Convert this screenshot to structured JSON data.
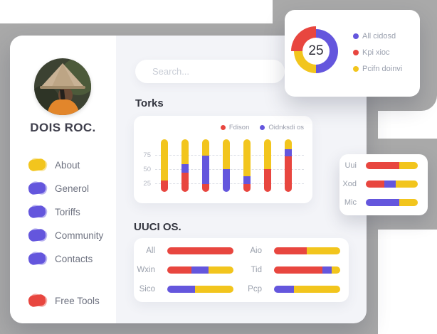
{
  "colors": {
    "red": "#e8463f",
    "purple": "#6456dd",
    "yellow": "#f2c51d",
    "gray_bg": "#a9a9a9",
    "content_bg": "#f3f4f8",
    "text_dark": "#33353f",
    "text_gray": "#6e7280",
    "text_light": "#9aa0ac"
  },
  "profile": {
    "name": "DOIS ROC."
  },
  "sidebar": {
    "items": [
      {
        "label": "About",
        "color": "yellow"
      },
      {
        "label": "Generol",
        "color": "purple"
      },
      {
        "label": "Toriffs",
        "color": "purple"
      },
      {
        "label": "Community",
        "color": "purple"
      },
      {
        "label": "Contacts",
        "color": "purple"
      }
    ],
    "footer_item": {
      "label": "Free Tools",
      "color": "red"
    }
  },
  "search": {
    "placeholder": "Search..."
  },
  "sections": {
    "torks": "Torks",
    "uuci": "UUCI OS."
  },
  "chart_data": [
    {
      "id": "kpi-donut",
      "type": "pie",
      "center_label": "25",
      "legend_position": "right",
      "legend": [
        {
          "label": "All cidosd",
          "color": "purple"
        },
        {
          "label": "Kpi xioc",
          "color": "red"
        },
        {
          "label": "Pcifn doinvi",
          "color": "yellow"
        }
      ],
      "slices": [
        {
          "label": "All cidosd",
          "color": "purple",
          "value": 50
        },
        {
          "label": "Pcifn doinvi",
          "color": "yellow",
          "value": 25
        },
        {
          "label": "Kpi xioc",
          "color": "red",
          "value": 25,
          "emphasized": true
        }
      ]
    },
    {
      "id": "torks",
      "type": "bar",
      "stacked": true,
      "title": "Torks",
      "yticks": [
        "75",
        "50",
        "25"
      ],
      "grid": "dashed",
      "legend": [
        {
          "label": "Fdison",
          "color": "red"
        },
        {
          "label": "Oidnksdi os",
          "color": "purple"
        }
      ],
      "bars": [
        {
          "segments": [
            {
              "color": "yellow",
              "pct": 78
            },
            {
              "color": "red",
              "pct": 22
            }
          ]
        },
        {
          "segments": [
            {
              "color": "yellow",
              "pct": 47
            },
            {
              "color": "purple",
              "pct": 16
            },
            {
              "color": "red",
              "pct": 37
            }
          ]
        },
        {
          "segments": [
            {
              "color": "yellow",
              "pct": 31
            },
            {
              "color": "purple",
              "pct": 54
            },
            {
              "color": "red",
              "pct": 15
            }
          ]
        },
        {
          "segments": [
            {
              "color": "yellow",
              "pct": 57
            },
            {
              "color": "purple",
              "pct": 43
            }
          ]
        },
        {
          "segments": [
            {
              "color": "yellow",
              "pct": 70
            },
            {
              "color": "purple",
              "pct": 15
            },
            {
              "color": "red",
              "pct": 15
            }
          ]
        },
        {
          "segments": [
            {
              "color": "yellow",
              "pct": 57
            },
            {
              "color": "red",
              "pct": 43
            }
          ]
        },
        {
          "segments": [
            {
              "color": "yellow",
              "pct": 19
            },
            {
              "color": "purple",
              "pct": 13
            },
            {
              "color": "red",
              "pct": 68
            }
          ]
        }
      ]
    },
    {
      "id": "uuci",
      "type": "hbar",
      "title": "UUCI OS.",
      "rows_left": [
        {
          "label": "All",
          "segments": [
            {
              "color": "red",
              "pct": 100
            }
          ]
        },
        {
          "label": "Wxin",
          "segments": [
            {
              "color": "red",
              "pct": 37
            },
            {
              "color": "purple",
              "pct": 25
            },
            {
              "color": "yellow",
              "pct": 38
            }
          ]
        },
        {
          "label": "Sico",
          "segments": [
            {
              "color": "purple",
              "pct": 42
            },
            {
              "color": "yellow",
              "pct": 58
            }
          ]
        }
      ],
      "rows_right": [
        {
          "label": "Aio",
          "segments": [
            {
              "color": "red",
              "pct": 49
            },
            {
              "color": "yellow",
              "pct": 51
            }
          ]
        },
        {
          "label": "Tid",
          "segments": [
            {
              "color": "red",
              "pct": 73
            },
            {
              "color": "purple",
              "pct": 14
            },
            {
              "color": "yellow",
              "pct": 13
            }
          ]
        },
        {
          "label": "Pcp",
          "segments": [
            {
              "color": "purple",
              "pct": 30
            },
            {
              "color": "yellow",
              "pct": 70
            }
          ]
        }
      ]
    },
    {
      "id": "mini",
      "type": "hbar",
      "rows": [
        {
          "label": "Uui",
          "segments": [
            {
              "color": "red",
              "pct": 65
            },
            {
              "color": "yellow",
              "pct": 35
            }
          ]
        },
        {
          "label": "Xod",
          "segments": [
            {
              "color": "red",
              "pct": 35
            },
            {
              "color": "purple",
              "pct": 22
            },
            {
              "color": "yellow",
              "pct": 43
            }
          ]
        },
        {
          "label": "Mic",
          "segments": [
            {
              "color": "purple",
              "pct": 65
            },
            {
              "color": "yellow",
              "pct": 35
            }
          ]
        }
      ]
    }
  ]
}
